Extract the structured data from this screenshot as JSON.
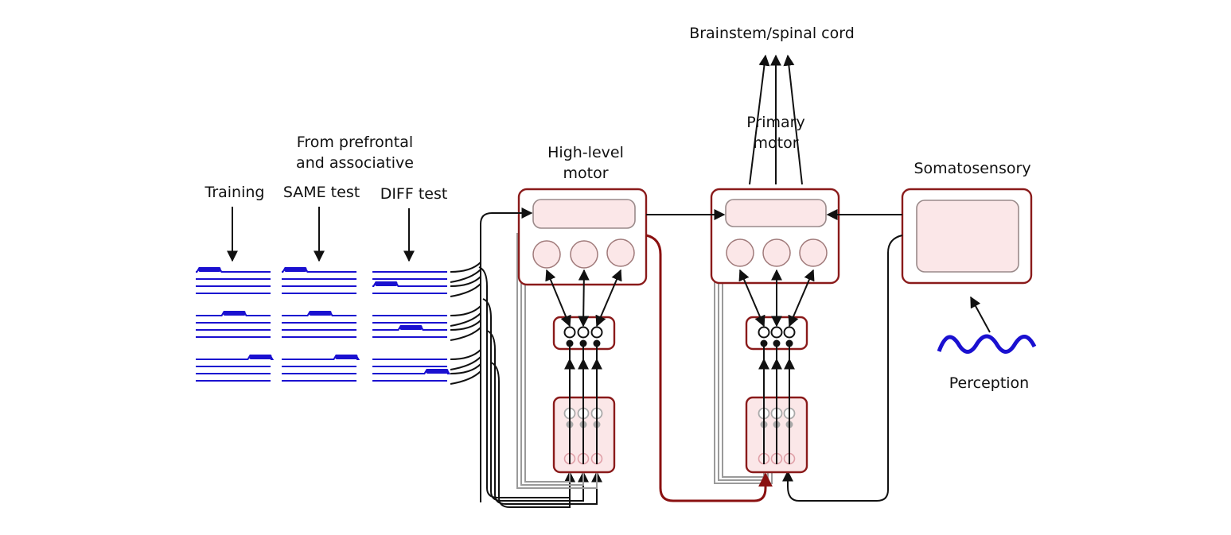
{
  "labels": {
    "brainstem": "Brainstem/spinal cord",
    "primary_motor_line1": "Primary",
    "primary_motor_line2": "motor",
    "high_level_line1": "High-level",
    "high_level_line2": "motor",
    "prefrontal_line1": "From prefrontal",
    "prefrontal_line2": "and associative",
    "training": "Training",
    "same_test": "SAME test",
    "diff_test": "DIFF test",
    "somatosensory": "Somatosensory",
    "perception": "Perception"
  },
  "colors": {
    "box_border": "#8a1a1a",
    "box_fill": "#fbe7e8",
    "spike": "#1a10d0",
    "gray_loop": "#9a9a9a",
    "red_pathway": "#8a1010"
  },
  "spike_groups": {
    "training": {
      "rows": [
        [
          0.0,
          0.35
        ],
        [
          0.35,
          0.7
        ],
        [
          0.7,
          1.0
        ]
      ]
    },
    "same": {
      "rows": [
        [
          0.0,
          0.35
        ],
        [
          0.35,
          0.7
        ],
        [
          0.7,
          1.0
        ]
      ]
    },
    "diff": {
      "rows": [
        [
          0.0,
          0.35
        ],
        [
          0.35,
          0.7
        ],
        [
          0.7,
          1.0
        ]
      ]
    }
  }
}
